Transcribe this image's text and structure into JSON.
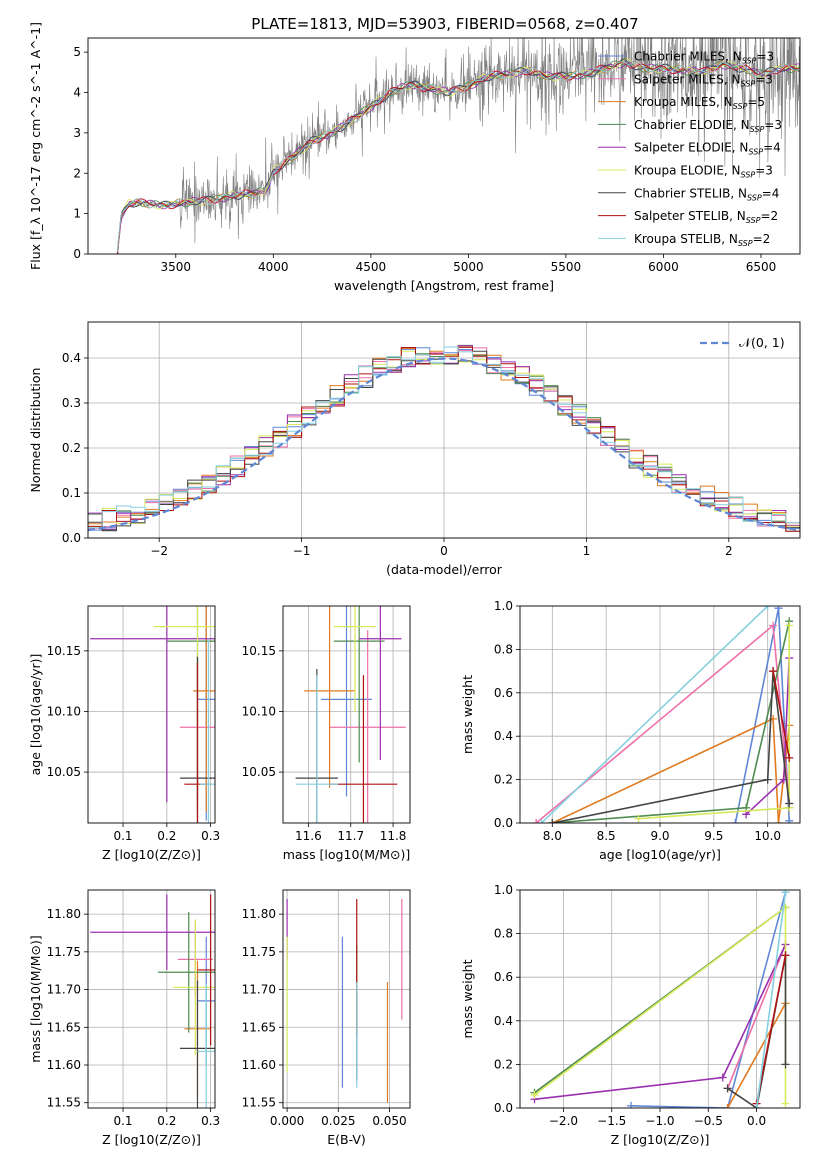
{
  "figure_title": "PLATE=1813, MJD=53903, FIBERID=0568, z=0.407",
  "model_colors": {
    "Chabrier MILES": "#5f87d6",
    "Salpeter MILES": "#ef6fa8",
    "Kroupa MILES": "#e07b22",
    "Chabrier ELODIE": "#4f8c4f",
    "Salpeter ELODIE": "#9a2fb0",
    "Kroupa ELODIE": "#d7e85a",
    "Chabrier STELIB": "#444444",
    "Salpeter STELIB": "#b01212",
    "Kroupa STELIB": "#86cfe0"
  },
  "chart_data": [
    {
      "id": "spectrum",
      "type": "line",
      "title": "",
      "xlabel": "wavelength [Angstrom, rest frame]",
      "ylabel": "Flux [f_λ 10^-17 erg cm^-2 s^-1 A^-1]",
      "xlim": [
        3050,
        6700
      ],
      "ylim": [
        0,
        5.35
      ],
      "xticks": [
        3500,
        4000,
        4500,
        5000,
        5500,
        6000,
        6500
      ],
      "yticks": [
        0,
        1,
        2,
        3,
        4,
        5
      ],
      "grid": false,
      "legend_position": "top-right",
      "legend": [
        {
          "label": "Chabrier MILES, N_SSP=3",
          "model": "Chabrier MILES"
        },
        {
          "label": "Salpeter MILES, N_SSP=3",
          "model": "Salpeter MILES"
        },
        {
          "label": "Kroupa MILES, N_SSP=5",
          "model": "Kroupa MILES"
        },
        {
          "label": "Chabrier ELODIE, N_SSP=3",
          "model": "Chabrier ELODIE"
        },
        {
          "label": "Salpeter ELODIE, N_SSP=4",
          "model": "Salpeter ELODIE"
        },
        {
          "label": "Kroupa ELODIE, N_SSP=3",
          "model": "Kroupa ELODIE"
        },
        {
          "label": "Chabrier STELIB, N_SSP=4",
          "model": "Chabrier STELIB"
        },
        {
          "label": "Salpeter STELIB, N_SSP=2",
          "model": "Salpeter STELIB"
        },
        {
          "label": "Kroupa STELIB, N_SSP=2",
          "model": "Kroupa STELIB"
        }
      ],
      "continuum_points": [
        [
          3200,
          0
        ],
        [
          3220,
          0.95
        ],
        [
          3260,
          1.25
        ],
        [
          3300,
          1.28
        ],
        [
          3350,
          1.25
        ],
        [
          3400,
          1.22
        ],
        [
          3450,
          1.2
        ],
        [
          3500,
          1.25
        ],
        [
          3600,
          1.3
        ],
        [
          3700,
          1.35
        ],
        [
          3800,
          1.45
        ],
        [
          3900,
          1.5
        ],
        [
          3950,
          1.55
        ],
        [
          3980,
          1.75
        ],
        [
          4000,
          2.05
        ],
        [
          4100,
          2.4
        ],
        [
          4200,
          2.8
        ],
        [
          4300,
          3.0
        ],
        [
          4400,
          3.3
        ],
        [
          4500,
          3.65
        ],
        [
          4600,
          4.0
        ],
        [
          4700,
          4.2
        ],
        [
          4800,
          4.1
        ],
        [
          4900,
          4.0
        ],
        [
          5000,
          4.15
        ],
        [
          5100,
          4.4
        ],
        [
          5200,
          4.45
        ],
        [
          5300,
          4.55
        ],
        [
          5400,
          4.4
        ],
        [
          5500,
          4.4
        ],
        [
          5600,
          4.45
        ],
        [
          5700,
          4.6
        ],
        [
          5800,
          4.75
        ],
        [
          5900,
          4.6
        ],
        [
          6000,
          4.6
        ],
        [
          6100,
          4.55
        ],
        [
          6200,
          4.5
        ],
        [
          6300,
          4.7
        ],
        [
          6400,
          4.6
        ],
        [
          6500,
          4.45
        ],
        [
          6600,
          4.6
        ]
      ]
    },
    {
      "id": "residuals",
      "type": "line",
      "xlabel": "(data-model)/error",
      "ylabel": "Normed distribution",
      "xlim": [
        -2.5,
        2.5
      ],
      "ylim": [
        0,
        0.48
      ],
      "xticks": [
        -2,
        -1,
        0,
        1,
        2
      ],
      "yticks": [
        0,
        0.1,
        0.2,
        0.3,
        0.4
      ],
      "grid": true,
      "legend_position": "top-right",
      "legend": [
        {
          "label": "𝒩(0, 1)",
          "style": "dashed",
          "color": "#5f87d6"
        }
      ]
    },
    {
      "id": "age-vs-Z",
      "type": "scatter",
      "xlabel": "Z [log10(Z/Z⊙)]",
      "ylabel": "age  [log10(age/yr)]",
      "xlim": [
        0.02,
        0.31
      ],
      "ylim": [
        10.008,
        10.187
      ],
      "xticks": [
        0.1,
        0.2,
        0.3
      ],
      "yticks": [
        10.05,
        10.1,
        10.15
      ],
      "grid": true,
      "points": [
        {
          "model": "Chabrier MILES",
          "x": 0.29,
          "y": 10.11,
          "xerr": 0.02,
          "yerr": 0.1
        },
        {
          "model": "Salpeter MILES",
          "x": 0.27,
          "y": 10.087,
          "xerr": 0.04,
          "yerr": 0.06
        },
        {
          "model": "Kroupa MILES",
          "x": 0.29,
          "y": 10.117,
          "xerr": 0.03,
          "yerr": 0.1
        },
        {
          "model": "Chabrier ELODIE",
          "x": 0.27,
          "y": 10.158,
          "xerr": 0.07,
          "yerr": 0.14
        },
        {
          "model": "Salpeter ELODIE",
          "x": 0.2,
          "y": 10.16,
          "xerr": 0.175,
          "yerr": 0.135
        },
        {
          "model": "Kroupa ELODIE",
          "x": 0.27,
          "y": 10.17,
          "xerr": 0.1,
          "yerr": 0.13
        },
        {
          "model": "Chabrier STELIB",
          "x": 0.27,
          "y": 10.045,
          "xerr": 0.04,
          "yerr": 0.1
        },
        {
          "model": "Salpeter STELIB",
          "x": 0.27,
          "y": 10.04,
          "xerr": 0.03,
          "yerr": 0.1
        },
        {
          "model": "Kroupa STELIB",
          "x": 0.295,
          "y": 10.04,
          "xerr": 0.02,
          "yerr": 0.12
        }
      ]
    },
    {
      "id": "age-vs-mass",
      "type": "scatter",
      "xlabel": "mass [log10(M/M⊙)]",
      "ylabel": "",
      "xlim": [
        11.54,
        11.84
      ],
      "ylim": [
        10.008,
        10.187
      ],
      "xticks": [
        11.6,
        11.7,
        11.8
      ],
      "yticks": [
        10.05,
        10.1,
        10.15
      ],
      "grid": true,
      "points": [
        {
          "model": "Chabrier MILES",
          "x": 11.69,
          "y": 10.11,
          "xerr": 0.06,
          "yerr": 0.08
        },
        {
          "model": "Salpeter MILES",
          "x": 11.74,
          "y": 10.087,
          "xerr": 0.09,
          "yerr": 0.08
        },
        {
          "model": "Kroupa MILES",
          "x": 11.65,
          "y": 10.117,
          "xerr": 0.06,
          "yerr": 0.08
        },
        {
          "model": "Chabrier ELODIE",
          "x": 11.72,
          "y": 10.158,
          "xerr": 0.06,
          "yerr": 0.1
        },
        {
          "model": "Salpeter ELODIE",
          "x": 11.77,
          "y": 10.16,
          "xerr": 0.05,
          "yerr": 0.1
        },
        {
          "model": "Kroupa ELODIE",
          "x": 11.71,
          "y": 10.17,
          "xerr": 0.05,
          "yerr": 0.07
        },
        {
          "model": "Chabrier STELIB",
          "x": 11.62,
          "y": 10.045,
          "xerr": 0.05,
          "yerr": 0.09
        },
        {
          "model": "Salpeter STELIB",
          "x": 11.73,
          "y": 10.04,
          "xerr": 0.08,
          "yerr": 0.09
        },
        {
          "model": "Kroupa STELIB",
          "x": 11.62,
          "y": 10.04,
          "xerr": 0.05,
          "yerr": 0.09
        }
      ]
    },
    {
      "id": "weight-vs-age",
      "type": "line",
      "xlabel": "age  [log10(age/yr)]",
      "ylabel": "mass weight",
      "xlim": [
        7.7,
        10.3
      ],
      "ylim": [
        0,
        1
      ],
      "xticks": [
        8.0,
        8.5,
        9.0,
        9.5,
        10.0
      ],
      "yticks": [
        0,
        0.2,
        0.4,
        0.6,
        0.8,
        1.0
      ],
      "grid": true,
      "series": [
        {
          "model": "Chabrier MILES",
          "points": [
            [
              9.7,
              0
            ],
            [
              10.1,
              0.99
            ],
            [
              10.2,
              0.01
            ]
          ]
        },
        {
          "model": "Salpeter MILES",
          "points": [
            [
              7.85,
              0
            ],
            [
              10.05,
              0.91
            ],
            [
              10.2,
              0.09
            ]
          ]
        },
        {
          "model": "Kroupa MILES",
          "points": [
            [
              8.0,
              0
            ],
            [
              10.05,
              0.48
            ],
            [
              10.1,
              0.0
            ],
            [
              10.2,
              0.45
            ],
            [
              10.2,
              0.07
            ]
          ]
        },
        {
          "model": "Chabrier ELODIE",
          "points": [
            [
              8.0,
              0
            ],
            [
              9.8,
              0.07
            ],
            [
              10.2,
              0.93
            ]
          ]
        },
        {
          "model": "Salpeter ELODIE",
          "points": [
            [
              9.8,
              0.04
            ],
            [
              10.15,
              0.2
            ],
            [
              10.2,
              0.76
            ]
          ]
        },
        {
          "model": "Kroupa ELODIE",
          "points": [
            [
              8.8,
              0.02
            ],
            [
              10.2,
              0.07
            ],
            [
              10.2,
              0.91
            ]
          ]
        },
        {
          "model": "Chabrier STELIB",
          "points": [
            [
              8.0,
              0
            ],
            [
              10.0,
              0.2
            ],
            [
              10.05,
              0.7
            ],
            [
              10.2,
              0.09
            ]
          ]
        },
        {
          "model": "Salpeter STELIB",
          "points": [
            [
              10.05,
              0.7
            ],
            [
              10.2,
              0.3
            ]
          ]
        },
        {
          "model": "Kroupa STELIB",
          "points": [
            [
              7.9,
              0
            ],
            [
              10.0,
              1.0
            ]
          ]
        }
      ]
    },
    {
      "id": "mass-vs-Z",
      "type": "scatter",
      "xlabel": "Z [log10(Z/Z⊙)]",
      "ylabel": "mass [log10(M/M⊙)]",
      "xlim": [
        0.02,
        0.31
      ],
      "ylim": [
        11.543,
        11.832
      ],
      "xticks": [
        0.1,
        0.2,
        0.3
      ],
      "yticks": [
        11.55,
        11.6,
        11.65,
        11.7,
        11.75,
        11.8
      ],
      "grid": true,
      "points": [
        {
          "model": "Chabrier MILES",
          "x": 0.29,
          "y": 11.685,
          "xerr": 0.02,
          "yerr": 0.085
        },
        {
          "model": "Salpeter MILES",
          "x": 0.265,
          "y": 11.74,
          "xerr": 0.04,
          "yerr": 0.05
        },
        {
          "model": "Kroupa MILES",
          "x": 0.27,
          "y": 11.648,
          "xerr": 0.03,
          "yerr": 0.09
        },
        {
          "model": "Chabrier ELODIE",
          "x": 0.25,
          "y": 11.723,
          "xerr": 0.07,
          "yerr": 0.08
        },
        {
          "model": "Salpeter ELODIE",
          "x": 0.2,
          "y": 11.776,
          "xerr": 0.175,
          "yerr": 0.05
        },
        {
          "model": "Kroupa ELODIE",
          "x": 0.265,
          "y": 11.703,
          "xerr": 0.05,
          "yerr": 0.09
        },
        {
          "model": "Chabrier STELIB",
          "x": 0.27,
          "y": 11.622,
          "xerr": 0.04,
          "yerr": 0.09
        },
        {
          "model": "Salpeter STELIB",
          "x": 0.3,
          "y": 11.726,
          "xerr": 0.03,
          "yerr": 0.1
        },
        {
          "model": "Kroupa STELIB",
          "x": 0.29,
          "y": 11.618,
          "xerr": 0.02,
          "yerr": 0.09
        }
      ]
    },
    {
      "id": "mass-vs-ebv",
      "type": "scatter",
      "xlabel": "E(B-V)",
      "ylabel": "",
      "xlim": [
        -0.002,
        0.06
      ],
      "ylim": [
        11.543,
        11.832
      ],
      "xticks": [
        0.0,
        0.025,
        0.05
      ],
      "yticks": [
        11.55,
        11.6,
        11.65,
        11.7,
        11.75,
        11.8
      ],
      "grid": true,
      "points": [
        {
          "model": "Chabrier MILES",
          "x": 0.027,
          "y": 11.67,
          "xerr": 0,
          "yerr": 0.1
        },
        {
          "model": "Salpeter MILES",
          "x": 0.056,
          "y": 11.74,
          "xerr": 0,
          "yerr": 0.08
        },
        {
          "model": "Kroupa MILES",
          "x": 0.049,
          "y": 11.63,
          "xerr": 0,
          "yerr": 0.08
        },
        {
          "model": "Chabrier ELODIE",
          "x": 0.034,
          "y": 11.7,
          "xerr": 0,
          "yerr": 0.06
        },
        {
          "model": "Salpeter ELODIE",
          "x": 0.0,
          "y": 11.78,
          "xerr": 0,
          "yerr": 0.04
        },
        {
          "model": "Kroupa ELODIE",
          "x": 0.0,
          "y": 11.68,
          "xerr": 0,
          "yerr": 0.09
        },
        {
          "model": "Chabrier STELIB",
          "x": 0.034,
          "y": 11.64,
          "xerr": 0,
          "yerr": 0.06
        },
        {
          "model": "Salpeter STELIB",
          "x": 0.034,
          "y": 11.73,
          "xerr": 0,
          "yerr": 0.09
        },
        {
          "model": "Kroupa STELIB",
          "x": 0.034,
          "y": 11.64,
          "xerr": 0,
          "yerr": 0.07
        }
      ]
    },
    {
      "id": "weight-vs-Z",
      "type": "line",
      "xlabel": "Z [log10(Z/Z⊙)]",
      "ylabel": "mass weight",
      "xlim": [
        -2.45,
        0.45
      ],
      "ylim": [
        0,
        1
      ],
      "xticks": [
        -2.0,
        -1.5,
        -1.0,
        -0.5,
        0.0
      ],
      "yticks": [
        0,
        0.2,
        0.4,
        0.6,
        0.8,
        1.0
      ],
      "grid": true,
      "series": [
        {
          "model": "Chabrier MILES",
          "points": [
            [
              -1.3,
              0.01
            ],
            [
              -0.3,
              0
            ],
            [
              0.3,
              0.99
            ]
          ]
        },
        {
          "model": "Salpeter MILES",
          "points": [
            [
              -0.3,
              0.09
            ],
            [
              0.3,
              0.75
            ]
          ]
        },
        {
          "model": "Kroupa MILES",
          "points": [
            [
              -0.3,
              0
            ],
            [
              0.3,
              0.48
            ]
          ]
        },
        {
          "model": "Chabrier ELODIE",
          "points": [
            [
              -2.3,
              0.07
            ],
            [
              0.3,
              0.92
            ]
          ]
        },
        {
          "model": "Salpeter ELODIE",
          "points": [
            [
              -2.3,
              0.04
            ],
            [
              -0.35,
              0.14
            ],
            [
              0.3,
              0.75
            ]
          ]
        },
        {
          "model": "Kroupa ELODIE",
          "points": [
            [
              -2.3,
              0.06
            ],
            [
              0.3,
              0.92
            ],
            [
              0.3,
              0.02
            ]
          ]
        },
        {
          "model": "Chabrier STELIB",
          "points": [
            [
              -0.3,
              0.09
            ],
            [
              0,
              0
            ],
            [
              0.3,
              0.7
            ],
            [
              0.3,
              0.2
            ]
          ]
        },
        {
          "model": "Salpeter STELIB",
          "points": [
            [
              0,
              0.02
            ],
            [
              0.3,
              0.7
            ]
          ]
        },
        {
          "model": "Kroupa STELIB",
          "points": [
            [
              0,
              0
            ],
            [
              0.3,
              0.99
            ]
          ]
        }
      ]
    }
  ]
}
